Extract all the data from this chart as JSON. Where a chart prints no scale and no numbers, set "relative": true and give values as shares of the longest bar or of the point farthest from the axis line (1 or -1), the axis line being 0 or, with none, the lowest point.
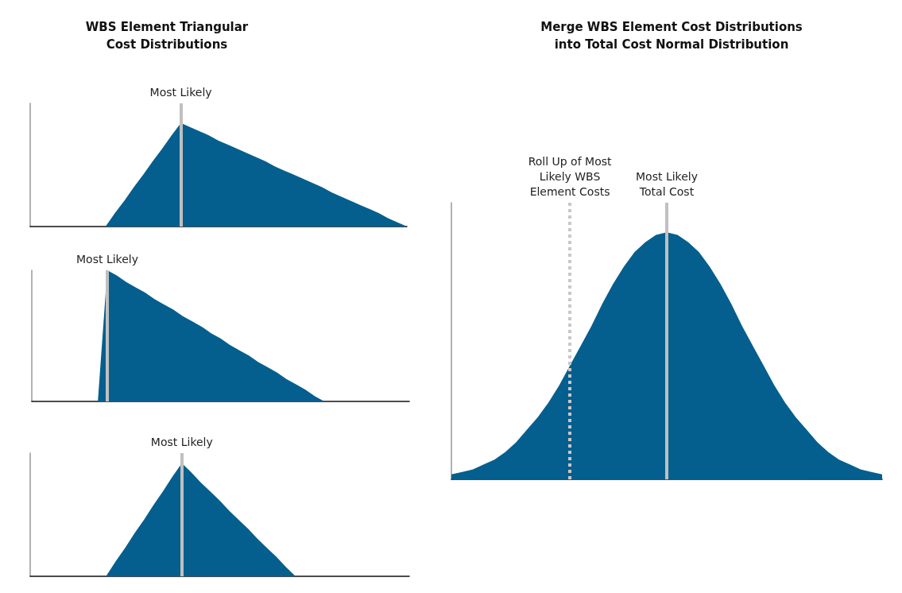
{
  "chart_data": [
    {
      "type": "area",
      "relative": true,
      "title": "WBS Element Triangular\nCost Distributions",
      "categories": [
        null,
        null,
        null,
        null,
        null,
        null,
        null,
        null,
        null,
        null,
        null,
        null,
        null,
        null,
        null,
        null,
        null,
        null,
        null,
        null,
        null,
        null,
        null,
        null,
        null,
        null,
        null,
        null,
        null,
        null,
        null,
        null,
        null,
        null,
        null,
        null,
        null,
        null,
        null,
        null,
        null
      ],
      "series": [
        {
          "color": "#045f8e",
          "values": [
            0,
            0,
            0,
            0,
            0,
            0,
            0,
            0,
            0,
            0.13,
            0.25,
            0.38,
            0.5,
            0.63,
            0.75,
            0.88,
            1,
            0.96,
            0.92,
            0.88,
            0.83,
            0.79,
            0.75,
            0.71,
            0.67,
            0.63,
            0.58,
            0.54,
            0.5,
            0.46,
            0.42,
            0.38,
            0.33,
            0.29,
            0.25,
            0.21,
            0.17,
            0.13,
            0.08,
            0.04,
            0
          ]
        }
      ],
      "annotations": [
        "Most Likely"
      ]
    },
    {
      "type": "area",
      "relative": true,
      "categories": [
        null,
        null,
        null,
        null,
        null,
        null,
        null,
        null,
        null,
        null,
        null,
        null,
        null,
        null,
        null,
        null,
        null,
        null,
        null,
        null,
        null,
        null,
        null,
        null,
        null,
        null,
        null,
        null,
        null,
        null,
        null,
        null,
        null,
        null,
        null,
        null,
        null,
        null,
        null,
        null,
        null
      ],
      "series": [
        {
          "color": "#045f8e",
          "values": [
            0,
            0,
            0,
            0,
            0,
            0,
            0,
            0,
            1,
            0.96,
            0.91,
            0.87,
            0.83,
            0.78,
            0.74,
            0.7,
            0.65,
            0.61,
            0.57,
            0.52,
            0.48,
            0.43,
            0.39,
            0.35,
            0.3,
            0.26,
            0.22,
            0.17,
            0.13,
            0.09,
            0.04,
            0,
            0,
            0,
            0,
            0,
            0,
            0,
            0,
            0,
            0
          ]
        }
      ],
      "annotations": [
        "Most Likely"
      ]
    },
    {
      "type": "area",
      "relative": true,
      "categories": [
        null,
        null,
        null,
        null,
        null,
        null,
        null,
        null,
        null,
        null,
        null,
        null,
        null,
        null,
        null,
        null,
        null,
        null,
        null,
        null,
        null,
        null,
        null,
        null,
        null,
        null,
        null,
        null,
        null,
        null,
        null,
        null,
        null,
        null,
        null,
        null,
        null,
        null,
        null,
        null,
        null
      ],
      "series": [
        {
          "color": "#045f8e",
          "values": [
            0,
            0,
            0,
            0,
            0,
            0,
            0,
            0,
            0,
            0.13,
            0.25,
            0.38,
            0.5,
            0.63,
            0.75,
            0.88,
            1,
            0.92,
            0.83,
            0.75,
            0.67,
            0.58,
            0.5,
            0.42,
            0.33,
            0.25,
            0.17,
            0.08,
            0,
            0,
            0,
            0,
            0,
            0,
            0,
            0,
            0,
            0,
            0,
            0,
            0
          ]
        }
      ],
      "annotations": [
        "Most Likely"
      ]
    },
    {
      "type": "area",
      "relative": true,
      "title": "Merge WBS Element Cost Distributions\ninto Total Cost Normal Distribution",
      "categories": [
        null,
        null,
        null,
        null,
        null,
        null,
        null,
        null,
        null,
        null,
        null,
        null,
        null,
        null,
        null,
        null,
        null,
        null,
        null,
        null,
        null,
        null,
        null,
        null,
        null,
        null,
        null,
        null,
        null,
        null,
        null,
        null,
        null,
        null,
        null,
        null,
        null,
        null,
        null,
        null,
        null
      ],
      "series": [
        {
          "color": "#045f8e",
          "values": [
            0.02,
            0.03,
            0.04,
            0.06,
            0.08,
            0.11,
            0.15,
            0.2,
            0.25,
            0.31,
            0.38,
            0.46,
            0.54,
            0.62,
            0.71,
            0.79,
            0.86,
            0.92,
            0.96,
            0.99,
            1,
            0.99,
            0.96,
            0.92,
            0.86,
            0.79,
            0.71,
            0.62,
            0.54,
            0.46,
            0.38,
            0.31,
            0.25,
            0.2,
            0.15,
            0.11,
            0.08,
            0.06,
            0.04,
            0.03,
            0.02
          ]
        }
      ],
      "annotations": [
        "Most Likely\nTotal Cost",
        "Roll Up of Most\nLikely WBS\nElement Costs"
      ]
    }
  ]
}
